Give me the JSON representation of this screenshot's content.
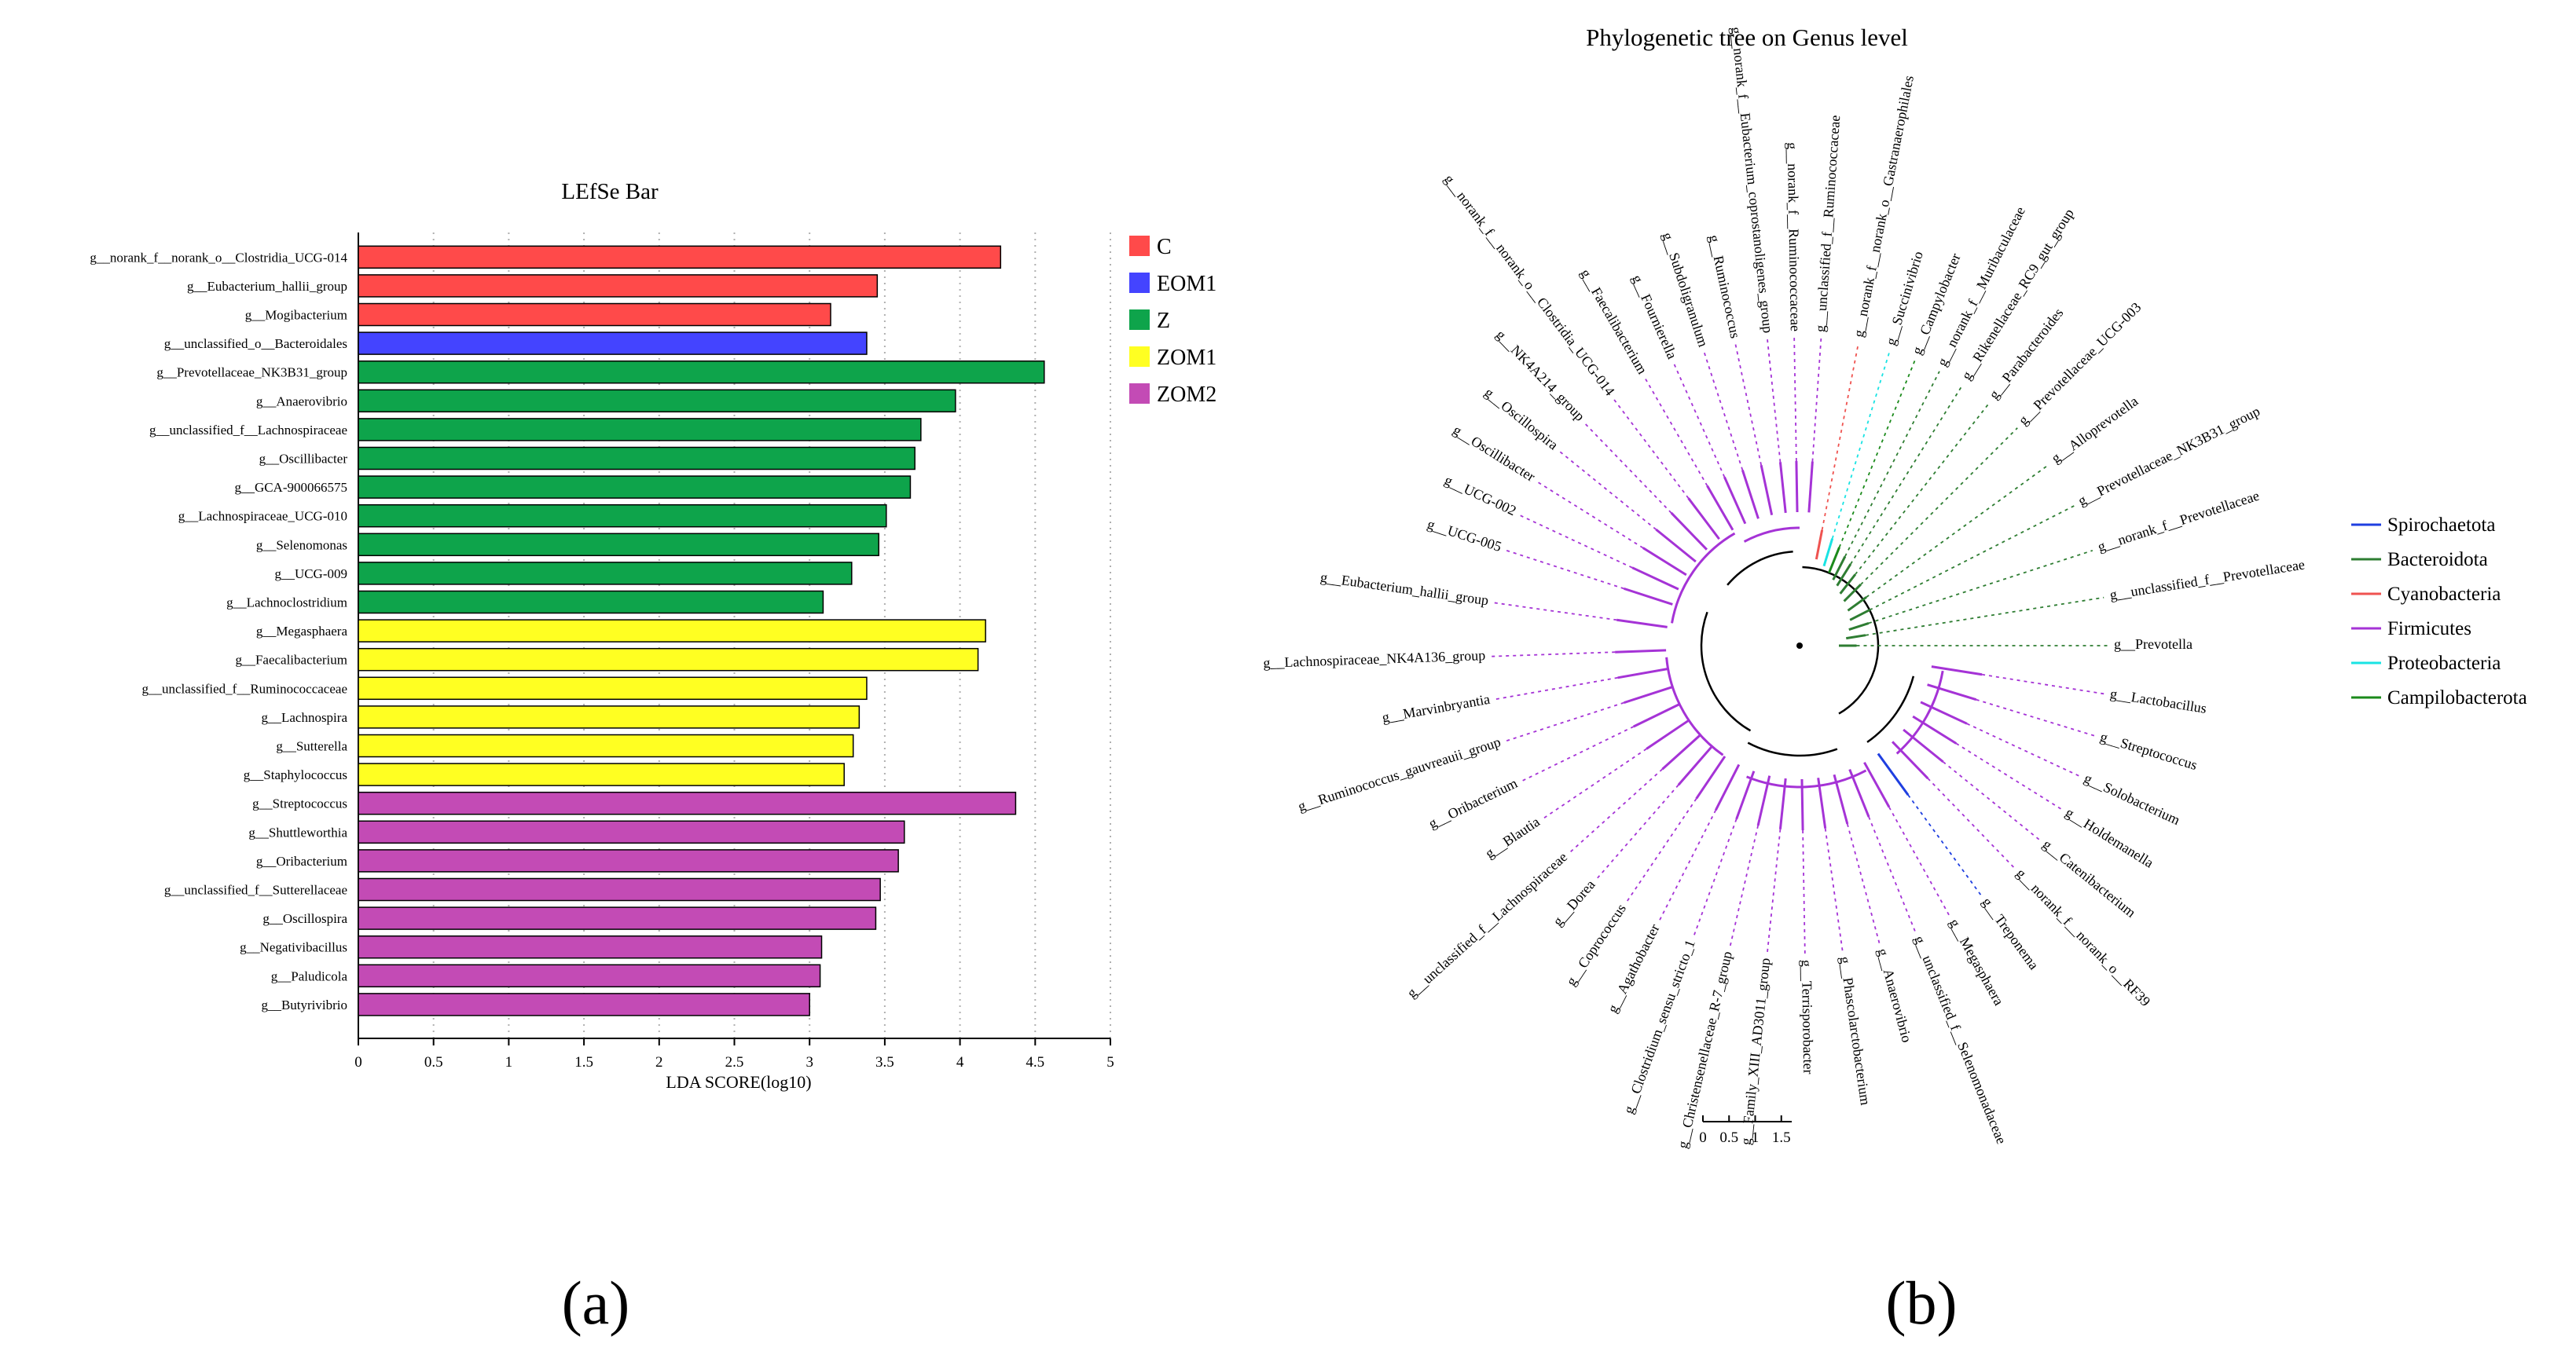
{
  "panel_labels": {
    "a": "(a)",
    "b": "(b)"
  },
  "chart_data": [
    {
      "type": "bar",
      "orientation": "horizontal",
      "title": "LEfSe Bar",
      "xlabel": "LDA SCORE(log10)",
      "ylabel": "",
      "xlim": [
        0,
        5
      ],
      "ticks": [
        0,
        0.5,
        1,
        1.5,
        2,
        2.5,
        3,
        3.5,
        4,
        4.5,
        5
      ],
      "tick_labels": [
        "0",
        "0.5",
        "1",
        "1.5",
        "2",
        "2.5",
        "3",
        "3.5",
        "4",
        "4.5",
        "5"
      ],
      "grid": "vertical dotted",
      "legend_position": "right",
      "groups": [
        {
          "name": "C",
          "color": "#FF4A4A"
        },
        {
          "name": "EOM1",
          "color": "#4444FF"
        },
        {
          "name": "Z",
          "color": "#0EA44B"
        },
        {
          "name": "ZOM1",
          "color": "#FFFF22"
        },
        {
          "name": "ZOM2",
          "color": "#C34BB5"
        }
      ],
      "bars": [
        {
          "label": "g__norank_f__norank_o__Clostridia_UCG-014",
          "value": 4.27,
          "group": "C"
        },
        {
          "label": "g__Eubacterium_hallii_group",
          "value": 3.45,
          "group": "C"
        },
        {
          "label": "g__Mogibacterium",
          "value": 3.14,
          "group": "C"
        },
        {
          "label": "g__unclassified_o__Bacteroidales",
          "value": 3.38,
          "group": "EOM1"
        },
        {
          "label": "g__Prevotellaceae_NK3B31_group",
          "value": 4.56,
          "group": "Z"
        },
        {
          "label": "g__Anaerovibrio",
          "value": 3.97,
          "group": "Z"
        },
        {
          "label": "g__unclassified_f__Lachnospiraceae",
          "value": 3.74,
          "group": "Z"
        },
        {
          "label": "g__Oscillibacter",
          "value": 3.7,
          "group": "Z"
        },
        {
          "label": "g__GCA-900066575",
          "value": 3.67,
          "group": "Z"
        },
        {
          "label": "g__Lachnospiraceae_UCG-010",
          "value": 3.51,
          "group": "Z"
        },
        {
          "label": "g__Selenomonas",
          "value": 3.46,
          "group": "Z"
        },
        {
          "label": "g__UCG-009",
          "value": 3.28,
          "group": "Z"
        },
        {
          "label": "g__Lachnoclostridium",
          "value": 3.09,
          "group": "Z"
        },
        {
          "label": "g__Megasphaera",
          "value": 4.17,
          "group": "ZOM1"
        },
        {
          "label": "g__Faecalibacterium",
          "value": 4.12,
          "group": "ZOM1"
        },
        {
          "label": "g__unclassified_f__Ruminococcaceae",
          "value": 3.38,
          "group": "ZOM1"
        },
        {
          "label": "g__Lachnospira",
          "value": 3.33,
          "group": "ZOM1"
        },
        {
          "label": "g__Sutterella",
          "value": 3.29,
          "group": "ZOM1"
        },
        {
          "label": "g__Staphylococcus",
          "value": 3.23,
          "group": "ZOM1"
        },
        {
          "label": "g__Streptococcus",
          "value": 4.37,
          "group": "ZOM2"
        },
        {
          "label": "g__Shuttleworthia",
          "value": 3.63,
          "group": "ZOM2"
        },
        {
          "label": "g__Oribacterium",
          "value": 3.59,
          "group": "ZOM2"
        },
        {
          "label": "g__unclassified_f__Sutterellaceae",
          "value": 3.47,
          "group": "ZOM2"
        },
        {
          "label": "g__Oscillospira",
          "value": 3.44,
          "group": "ZOM2"
        },
        {
          "label": "g__Negativibacillus",
          "value": 3.08,
          "group": "ZOM2"
        },
        {
          "label": "g__Paludicola",
          "value": 3.07,
          "group": "ZOM2"
        },
        {
          "label": "g__Butyrivibrio",
          "value": 3.0,
          "group": "ZOM2"
        }
      ]
    },
    {
      "type": "tree",
      "title": "Phylogenetic tree on Genus level",
      "scale_ticks": [
        "0",
        "0.5",
        "1",
        "1.5"
      ],
      "scale_values": [
        0,
        0.5,
        1,
        1.5
      ],
      "legend_position": "right",
      "phyla": [
        {
          "name": "Spirochaetota",
          "color": "#1f3fe0"
        },
        {
          "name": "Bacteroidota",
          "color": "#2e7d32"
        },
        {
          "name": "Cyanobacteria",
          "color": "#ef5350"
        },
        {
          "name": "Firmicutes",
          "color": "#a533d6"
        },
        {
          "name": "Proteobacteria",
          "color": "#19e3e3"
        },
        {
          "name": "Campilobacterota",
          "color": "#1b8a1b"
        }
      ],
      "leaves": [
        {
          "label": "g__Prevotella",
          "angle": 0,
          "phylum": "Bacteroidota",
          "depth": 0.05
        },
        {
          "label": "g__unclassified_f__Prevotellaceae",
          "angle": -9,
          "phylum": "Bacteroidota",
          "depth": 0.1
        },
        {
          "label": "g__norank_f__Prevotellaceae",
          "angle": -18,
          "phylum": "Bacteroidota",
          "depth": 0.13
        },
        {
          "label": "g__Prevotellaceae_NK3B31_group",
          "angle": -27,
          "phylum": "Bacteroidota",
          "depth": 0.16
        },
        {
          "label": "g__Alloprevotella",
          "angle": -36,
          "phylum": "Bacteroidota",
          "depth": 0.18
        },
        {
          "label": "g__Prevotellaceae_UCG-003",
          "angle": -45,
          "phylum": "Bacteroidota",
          "depth": 0.2
        },
        {
          "label": "g__Parabacteroides",
          "angle": -52,
          "phylum": "Bacteroidota",
          "depth": 0.22
        },
        {
          "label": "g__Rikenellaceae_RC9_gut_group",
          "angle": -58,
          "phylum": "Bacteroidota",
          "depth": 0.25
        },
        {
          "label": "g__norank_f__Muribaculaceae",
          "angle": -63,
          "phylum": "Bacteroidota",
          "depth": 0.27
        },
        {
          "label": "g__Campylobacter",
          "angle": -68,
          "phylum": "Campilobacterota",
          "depth": 0.3
        },
        {
          "label": "g__Succinivibrio",
          "angle": -73,
          "phylum": "Proteobacteria",
          "depth": 0.33
        },
        {
          "label": "g__norank_f__norank_o__Gastranaerophilales",
          "angle": -79,
          "phylum": "Cyanobacteria",
          "depth": 0.36
        },
        {
          "label": "g__unclassified_f__Ruminococcaceae",
          "angle": -86,
          "phylum": "Firmicutes",
          "depth": 0.38
        },
        {
          "label": "g__norank_f__Ruminococcaceae",
          "angle": -91,
          "phylum": "Firmicutes",
          "depth": 0.38
        },
        {
          "label": "g__norank_f__Eubacterium_coprostanoligenes_group",
          "angle": -96,
          "phylum": "Firmicutes",
          "depth": 0.38
        },
        {
          "label": "g__Ruminococcus",
          "angle": -102,
          "phylum": "Firmicutes",
          "depth": 0.38
        },
        {
          "label": "g__Subdoligranulum",
          "angle": -108,
          "phylum": "Firmicutes",
          "depth": 0.38
        },
        {
          "label": "g__Fournierella",
          "angle": -114,
          "phylum": "Firmicutes",
          "depth": 0.38
        },
        {
          "label": "g__Faecalibacterium",
          "angle": -120,
          "phylum": "Firmicutes",
          "depth": 0.38
        },
        {
          "label": "g__norank_f__norank_o__Clostridia_UCG-014",
          "angle": -127,
          "phylum": "Firmicutes",
          "depth": 0.38
        },
        {
          "label": "g__NK4A214_group",
          "angle": -134,
          "phylum": "Firmicutes",
          "depth": 0.38
        },
        {
          "label": "g__Oscillospira",
          "angle": -141,
          "phylum": "Firmicutes",
          "depth": 0.38
        },
        {
          "label": "g__Oscillibacter",
          "angle": -148,
          "phylum": "Firmicutes",
          "depth": 0.38
        },
        {
          "label": "g__UCG-002",
          "angle": -155,
          "phylum": "Firmicutes",
          "depth": 0.38
        },
        {
          "label": "g__UCG-005",
          "angle": -162,
          "phylum": "Firmicutes",
          "depth": 0.38
        },
        {
          "label": "g__Eubacterium_hallii_group",
          "angle": -172,
          "phylum": "Firmicutes",
          "depth": 0.38
        },
        {
          "label": "g__Lachnospiraceae_NK4A136_group",
          "angle": 178,
          "phylum": "Firmicutes",
          "depth": 0.38
        },
        {
          "label": "g__Marvinbryantia",
          "angle": 170,
          "phylum": "Firmicutes",
          "depth": 0.38
        },
        {
          "label": "g__Ruminococcus_gauvreauii_group",
          "angle": 162,
          "phylum": "Firmicutes",
          "depth": 0.38
        },
        {
          "label": "g__Oribacterium",
          "angle": 154,
          "phylum": "Firmicutes",
          "depth": 0.38
        },
        {
          "label": "g__Blautia",
          "angle": 146,
          "phylum": "Firmicutes",
          "depth": 0.38
        },
        {
          "label": "g__unclassified_f__Lachnospiraceae",
          "angle": 138,
          "phylum": "Firmicutes",
          "depth": 0.38
        },
        {
          "label": "g__Dorea",
          "angle": 131,
          "phylum": "Firmicutes",
          "depth": 0.38
        },
        {
          "label": "g__Coprococcus",
          "angle": 124,
          "phylum": "Firmicutes",
          "depth": 0.38
        },
        {
          "label": "g__Agathobacter",
          "angle": 117,
          "phylum": "Firmicutes",
          "depth": 0.38
        },
        {
          "label": "g__Clostridium_sensu_stricto_1",
          "angle": 110,
          "phylum": "Firmicutes",
          "depth": 0.38
        },
        {
          "label": "g__Christensenellaceae_R-7_group",
          "angle": 103,
          "phylum": "Firmicutes",
          "depth": 0.38
        },
        {
          "label": "g__Family_XIII_AD3011_group",
          "angle": 96,
          "phylum": "Firmicutes",
          "depth": 0.38
        },
        {
          "label": "g__Terrisporobacter",
          "angle": 89,
          "phylum": "Firmicutes",
          "depth": 0.38
        },
        {
          "label": "g__Phascolarctobacterium",
          "angle": 82,
          "phylum": "Firmicutes",
          "depth": 0.38
        },
        {
          "label": "g__Anaerovibrio",
          "angle": 75,
          "phylum": "Firmicutes",
          "depth": 0.38
        },
        {
          "label": "g__unclassified_f__Selenomonadaceae",
          "angle": 68,
          "phylum": "Firmicutes",
          "depth": 0.38
        },
        {
          "label": "g__Megasphaera",
          "angle": 61,
          "phylum": "Firmicutes",
          "depth": 0.38
        },
        {
          "label": "g__Treponema",
          "angle": 54,
          "phylum": "Spirochaetota",
          "depth": 0.38
        },
        {
          "label": "g__norank_f__norank_o__RF39",
          "angle": 46,
          "phylum": "Firmicutes",
          "depth": 0.38
        },
        {
          "label": "g__Catenibacterium",
          "angle": 39,
          "phylum": "Firmicutes",
          "depth": 0.38
        },
        {
          "label": "g__Holdemanella",
          "angle": 32,
          "phylum": "Firmicutes",
          "depth": 0.38
        },
        {
          "label": "g__Solobacterium",
          "angle": 25,
          "phylum": "Firmicutes",
          "depth": 0.38
        },
        {
          "label": "g__Streptococcus",
          "angle": 17,
          "phylum": "Firmicutes",
          "depth": 0.38
        },
        {
          "label": "g__Lactobacillus",
          "angle": 9,
          "phylum": "Firmicutes",
          "depth": 0.38
        }
      ]
    }
  ]
}
